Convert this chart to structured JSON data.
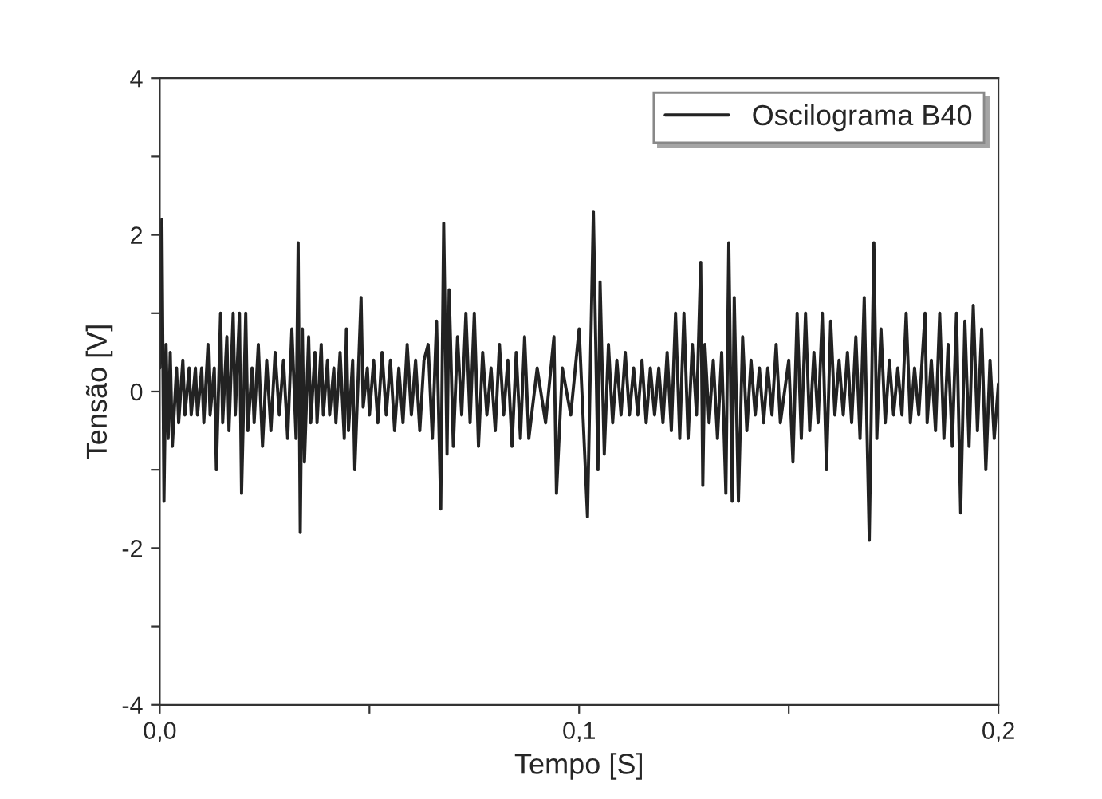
{
  "chart_data": {
    "type": "line",
    "xlabel": "Tempo [S]",
    "ylabel": "Tensão [V]",
    "xlim": [
      0,
      0.2
    ],
    "ylim": [
      -4,
      4
    ],
    "xticks": [
      {
        "value": 0,
        "label": "0,0"
      },
      {
        "value": 0.05,
        "label": null
      },
      {
        "value": 0.1,
        "label": "0,1"
      },
      {
        "value": 0.15,
        "label": null
      },
      {
        "value": 0.2,
        "label": "0,2"
      }
    ],
    "yticks": [
      -4,
      {
        "value": -3,
        "label": null
      },
      -2,
      {
        "value": -1,
        "label": null
      },
      0,
      {
        "value": 1,
        "label": null
      },
      2,
      {
        "value": 3,
        "label": null
      },
      4
    ],
    "grid": false,
    "legend": "top right",
    "marker": "none",
    "line_style": "solid",
    "series": [
      {
        "name": "Oscilograma B40",
        "color": "#222222",
        "x": [
          0.0,
          0.0005,
          0.001,
          0.0015,
          0.002,
          0.0025,
          0.003,
          0.004,
          0.0045,
          0.0055,
          0.006,
          0.007,
          0.0075,
          0.0085,
          0.009,
          0.01,
          0.0105,
          0.0115,
          0.012,
          0.013,
          0.0135,
          0.0145,
          0.015,
          0.016,
          0.0165,
          0.0175,
          0.018,
          0.019,
          0.0195,
          0.0205,
          0.021,
          0.022,
          0.0225,
          0.0235,
          0.0245,
          0.0255,
          0.0265,
          0.0275,
          0.0285,
          0.0295,
          0.0305,
          0.0315,
          0.0325,
          0.033,
          0.0335,
          0.034,
          0.0345,
          0.0355,
          0.036,
          0.037,
          0.0375,
          0.0385,
          0.039,
          0.04,
          0.0405,
          0.0415,
          0.042,
          0.043,
          0.044,
          0.0445,
          0.045,
          0.046,
          0.0465,
          0.048,
          0.0485,
          0.0495,
          0.05,
          0.051,
          0.052,
          0.053,
          0.054,
          0.055,
          0.056,
          0.057,
          0.058,
          0.059,
          0.06,
          0.061,
          0.062,
          0.063,
          0.064,
          0.065,
          0.066,
          0.067,
          0.0677,
          0.0685,
          0.069,
          0.07,
          0.071,
          0.072,
          0.073,
          0.074,
          0.075,
          0.076,
          0.077,
          0.078,
          0.079,
          0.08,
          0.081,
          0.082,
          0.083,
          0.084,
          0.085,
          0.086,
          0.087,
          0.088,
          0.09,
          0.092,
          0.094,
          0.0946,
          0.096,
          0.098,
          0.1,
          0.102,
          0.1034,
          0.1045,
          0.105,
          0.106,
          0.107,
          0.108,
          0.109,
          0.11,
          0.111,
          0.112,
          0.113,
          0.114,
          0.115,
          0.116,
          0.117,
          0.118,
          0.119,
          0.12,
          0.121,
          0.122,
          0.123,
          0.124,
          0.125,
          0.126,
          0.127,
          0.128,
          0.129,
          0.1295,
          0.13,
          0.131,
          0.132,
          0.133,
          0.134,
          0.135,
          0.1357,
          0.1365,
          0.137,
          0.138,
          0.139,
          0.14,
          0.141,
          0.142,
          0.143,
          0.144,
          0.145,
          0.146,
          0.147,
          0.148,
          0.15,
          0.151,
          0.152,
          0.153,
          0.154,
          0.155,
          0.156,
          0.157,
          0.158,
          0.159,
          0.16,
          0.161,
          0.162,
          0.163,
          0.164,
          0.165,
          0.166,
          0.167,
          0.168,
          0.1692,
          0.1703,
          0.171,
          0.172,
          0.173,
          0.174,
          0.175,
          0.176,
          0.177,
          0.178,
          0.179,
          0.18,
          0.181,
          0.1825,
          0.183,
          0.184,
          0.185,
          0.186,
          0.187,
          0.188,
          0.189,
          0.19,
          0.191,
          0.192,
          0.193,
          0.194,
          0.195,
          0.196,
          0.197,
          0.198,
          0.199,
          0.2
        ],
        "values": [
          0.3,
          2.2,
          -1.4,
          0.6,
          -0.6,
          0.5,
          -0.7,
          0.3,
          -0.4,
          0.4,
          -0.3,
          0.3,
          -0.3,
          0.3,
          -0.3,
          0.3,
          -0.4,
          0.6,
          -0.3,
          0.3,
          -1.0,
          1.0,
          -0.4,
          0.7,
          -0.5,
          1.0,
          -0.3,
          1.0,
          -1.3,
          1.0,
          -0.5,
          0.3,
          -0.4,
          0.6,
          -0.7,
          0.4,
          -0.5,
          0.5,
          -0.3,
          0.4,
          -0.6,
          0.8,
          -0.6,
          1.9,
          -1.8,
          0.8,
          -0.9,
          0.7,
          -0.4,
          0.5,
          -0.4,
          0.6,
          -0.3,
          0.4,
          -0.3,
          0.3,
          -0.4,
          0.5,
          -0.6,
          0.8,
          -0.5,
          0.4,
          -1.0,
          1.2,
          -0.2,
          0.3,
          -0.3,
          0.4,
          -0.4,
          0.5,
          -0.3,
          0.4,
          -0.5,
          0.3,
          -0.4,
          0.6,
          -0.3,
          0.4,
          -0.5,
          0.4,
          0.6,
          -0.6,
          0.9,
          -1.5,
          2.15,
          -0.8,
          1.3,
          -0.7,
          0.7,
          -0.3,
          1.0,
          -0.4,
          1.0,
          -0.7,
          0.5,
          -0.3,
          0.3,
          -0.5,
          0.6,
          -0.3,
          0.4,
          -0.7,
          0.5,
          -0.6,
          0.7,
          -0.6,
          0.3,
          -0.4,
          0.7,
          -1.3,
          0.3,
          -0.3,
          0.8,
          -1.6,
          2.3,
          -1.0,
          1.4,
          -0.8,
          0.6,
          -0.4,
          0.4,
          -0.3,
          0.5,
          -0.3,
          0.3,
          -0.3,
          0.4,
          -0.4,
          0.3,
          -0.3,
          0.3,
          -0.4,
          0.5,
          -0.5,
          1.0,
          -0.6,
          1.0,
          -0.6,
          0.6,
          -0.3,
          1.65,
          -1.2,
          0.6,
          -0.4,
          0.4,
          -0.6,
          0.5,
          -1.3,
          1.9,
          -1.4,
          1.2,
          -1.4,
          0.7,
          -0.5,
          0.4,
          -0.3,
          0.3,
          -0.4,
          0.3,
          -0.3,
          0.6,
          -0.4,
          0.4,
          -0.9,
          1.0,
          -0.6,
          1.0,
          -0.5,
          0.5,
          -0.4,
          1.0,
          -1.0,
          0.9,
          -0.3,
          0.4,
          -0.3,
          0.5,
          -0.4,
          0.7,
          -0.6,
          1.2,
          -1.9,
          1.9,
          -0.6,
          0.8,
          -0.4,
          0.4,
          -0.3,
          0.3,
          -0.3,
          1.0,
          -0.4,
          0.3,
          -0.3,
          1.0,
          -0.4,
          0.4,
          -0.5,
          1.0,
          -0.6,
          0.6,
          -0.7,
          1.0,
          -1.55,
          0.9,
          -0.7,
          1.1,
          -0.5,
          0.8,
          -1.0,
          0.4,
          -0.6,
          0.1
        ]
      }
    ]
  }
}
